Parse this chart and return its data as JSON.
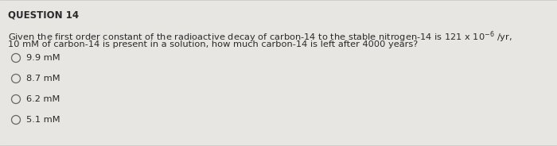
{
  "title": "QUESTION 14",
  "question_line1": "Given the first order constant of the radioactive decay of carbon-14 to the stable nitrogen-14 is 121 x 10$^{-6}$ /yr,",
  "question_line2": "10 mM of carbon-14 is present in a solution, how much carbon-14 is left after 4000 years?",
  "options": [
    "9.9 mM",
    "8.7 mM",
    "6.2 mM",
    "5.1 mM"
  ],
  "background_color": "#e8e6e3",
  "text_color": "#2a2a2a",
  "title_fontsize": 8.5,
  "question_fontsize": 8.2,
  "option_fontsize": 8.2,
  "border_color": "#c8c6c3"
}
